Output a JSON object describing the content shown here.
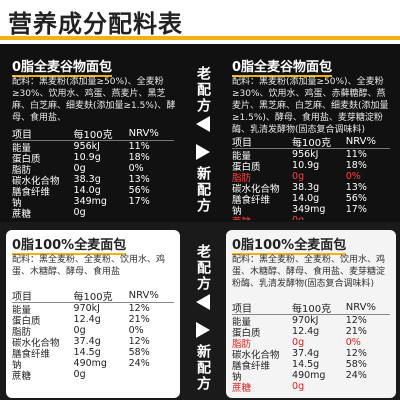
{
  "title": "营养成分配料表",
  "top": {
    "old_label": "老配方",
    "new_label": "新配方",
    "left": {
      "name": "0脂全麦谷物面包",
      "ingredients": "配料：黑麦粉(添加量≥50%)、全麦粉≥30%、饮用水、鸡蛋、燕麦片、黑芝麻、白芝麻、细麦麸(添加量≥1.5%)、酵母、食用盐、",
      "header": [
        "项目",
        "每100克",
        "NRV%"
      ],
      "rows": [
        [
          "能量",
          "956kJ",
          "11%"
        ],
        [
          "蛋白质",
          "10.9g",
          "18%"
        ],
        [
          "脂肪",
          "0g",
          "0%"
        ],
        [
          "碳水化合物",
          "38.3g",
          "13%"
        ],
        [
          "膳食纤维",
          "14.0g",
          "56%"
        ],
        [
          "钠",
          "349mg",
          "17%"
        ],
        [
          "蔗糖",
          "0g",
          ""
        ]
      ]
    },
    "right": {
      "name": "0脂全麦谷物面包",
      "ingredients": "配料：黑麦粉(添加量≥50%)、全麦粉≥30%、饮用水、鸡蛋、赤藓糖醇、燕麦片、黑芝麻、白芝麻、细麦麸(添加量≥1.5%)、酵母、食用盐、麦芽糖淀粉酶、乳清发酵物(固态复合调味料)",
      "header": [
        "项目",
        "每100克",
        "NRV%"
      ],
      "rows": [
        [
          "能量",
          "956kJ",
          "11%"
        ],
        [
          "蛋白质",
          "10.9g",
          "18%"
        ],
        [
          "脂肪",
          "0g",
          "0%"
        ],
        [
          "碳水化合物",
          "38.3g",
          "13%"
        ],
        [
          "膳食纤维",
          "14.0g",
          "56%"
        ],
        [
          "钠",
          "349mg",
          "17%"
        ],
        [
          "蔗糖",
          "0g",
          ""
        ]
      ]
    }
  },
  "bottom": {
    "old_label": "老配方",
    "new_label": "新配方",
    "left": {
      "name": "0脂100%全麦面包",
      "ingredients": "配料：黑全麦粉、全麦粉、饮用水、鸡蛋、木糖醇、酵母、食用盐",
      "header": [
        "项目",
        "每100克",
        "NRV%"
      ],
      "rows": [
        [
          "能量",
          "970kJ",
          "12%"
        ],
        [
          "蛋白质",
          "12.4g",
          "21%"
        ],
        [
          "脂肪",
          "0g",
          "0%"
        ],
        [
          "碳水化合物",
          "37.4g",
          "12%"
        ],
        [
          "膳食纤维",
          "14.5g",
          "58%"
        ],
        [
          "钠",
          "490mg",
          "24%"
        ],
        [
          "蔗糖",
          "0g",
          ""
        ]
      ]
    },
    "right": {
      "name": "0脂100%全麦面包",
      "ingredients": "配料：黑全麦粉、全麦粉、饮用水、鸡蛋、木糖醇、酵母、食用盐、麦芽糖淀粉酶、乳清发酵物(固态复合调味料)",
      "header": [
        "项目",
        "每100克",
        "NRV%"
      ],
      "rows": [
        [
          "能量",
          "970kJ",
          "12%"
        ],
        [
          "蛋白质",
          "12.4g",
          "21%"
        ],
        [
          "脂肪",
          "0g",
          "0%"
        ],
        [
          "碳水化合物",
          "37.4g",
          "12%"
        ],
        [
          "膳食纤维",
          "14.5g",
          "58%"
        ],
        [
          "钠",
          "490mg",
          "24%"
        ],
        [
          "蔗糖",
          "0g",
          ""
        ]
      ]
    }
  }
}
